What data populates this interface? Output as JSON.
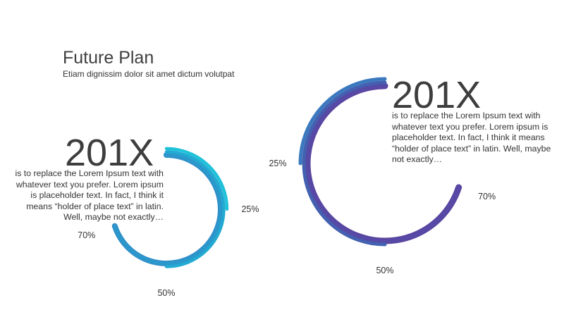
{
  "slide": {
    "title": "Future Plan",
    "subtitle": "Etiam dignissim dolor sit amet dictum volutpat"
  },
  "colors": {
    "left_palette": [
      "#1fc2d9",
      "#22aad2",
      "#2b98cc",
      "#2f8ec8"
    ],
    "right_palette": [
      "#3b79bf",
      "#4361b0",
      "#564aa6",
      "#5a44a0"
    ]
  },
  "panels": [
    {
      "heading": "201X",
      "text": "is to replace the Lorem Ipsum text with whatever text you prefer. Lorem ipsum is placeholder text. In fact, I think it means “holder of place text” in latin. Well, maybe not exactly…"
    },
    {
      "heading": "201X",
      "text": "is to replace the Lorem Ipsum text with whatever text you prefer. Lorem ipsum is placeholder text. In fact, I think it means “holder of place text” in latin. Well, maybe not exactly…"
    }
  ],
  "chart_data": [
    {
      "type": "radial-bar",
      "rings_percent": [
        25,
        50,
        70
      ],
      "labels": [
        "25%",
        "50%",
        "70%"
      ],
      "direction": "clockwise"
    },
    {
      "type": "radial-bar",
      "rings_percent": [
        25,
        50,
        70
      ],
      "labels": [
        "25%",
        "50%",
        "70%"
      ],
      "direction": "counterclockwise"
    }
  ]
}
